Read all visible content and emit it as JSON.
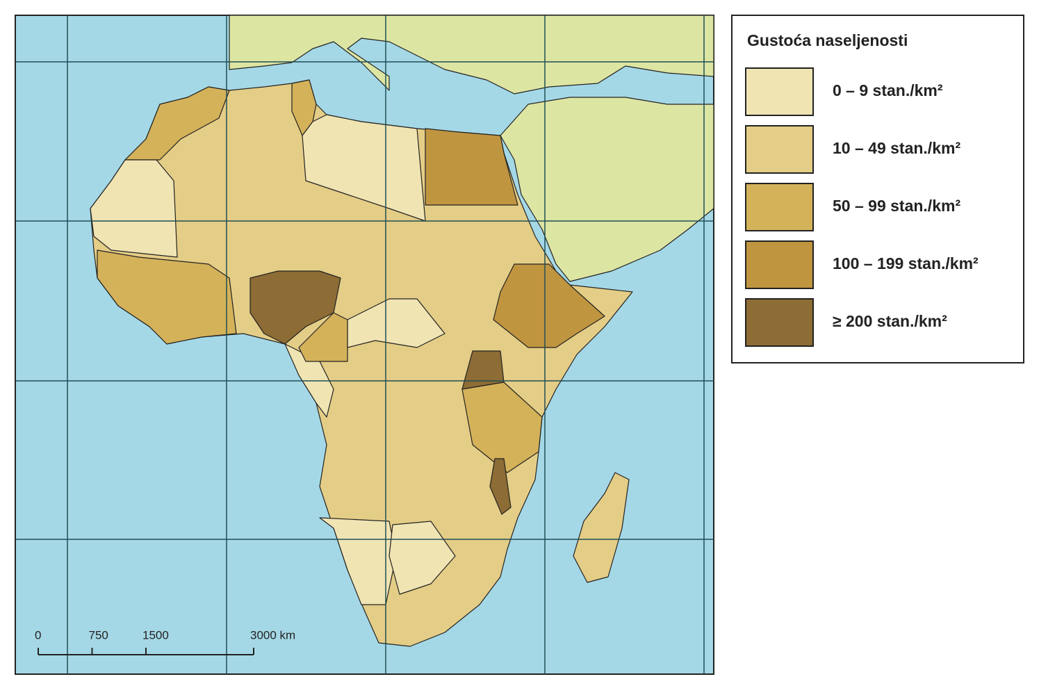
{
  "legend": {
    "title": "Gustoća naseljenosti",
    "entries": [
      {
        "label": "0 – 9 stan./km²",
        "color": "#f0e4b3"
      },
      {
        "label": "10 – 49 stan./km²",
        "color": "#e4cd86"
      },
      {
        "label": "50 – 99 stan./km²",
        "color": "#d4b25a"
      },
      {
        "label": "100 – 199 stan./km²",
        "color": "#c09540"
      },
      {
        "label": "≥ 200 stan./km²",
        "color": "#8d6c35"
      }
    ]
  },
  "scale": {
    "ticks": [
      0,
      750,
      1500,
      {
        "value": 3000,
        "label": "3000 km"
      }
    ]
  }
}
